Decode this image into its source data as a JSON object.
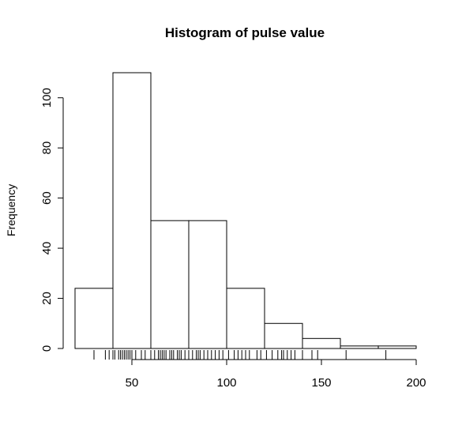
{
  "chart_data": {
    "type": "bar",
    "title": "Histogram of pulse value",
    "xlabel": "",
    "ylabel": "Frequency",
    "bin_edges": [
      20,
      40,
      60,
      80,
      100,
      120,
      140,
      160,
      180,
      200
    ],
    "values": [
      24,
      110,
      51,
      51,
      24,
      10,
      4,
      1,
      1
    ],
    "xlim": [
      20,
      200
    ],
    "ylim": [
      0,
      110
    ],
    "x_ticks": [
      50,
      100,
      150,
      200
    ],
    "y_ticks": [
      0,
      20,
      40,
      60,
      80,
      100
    ],
    "grid": false,
    "rug": [
      30,
      36,
      38,
      40,
      41,
      43,
      44,
      45,
      46,
      47,
      48,
      49,
      50,
      52,
      55,
      57,
      60,
      62,
      64,
      65,
      66,
      67,
      68,
      70,
      71,
      72,
      74,
      75,
      76,
      78,
      80,
      82,
      84,
      85,
      86,
      88,
      90,
      92,
      94,
      96,
      98,
      101,
      104,
      106,
      108,
      110,
      112,
      116,
      118,
      121,
      124,
      127,
      129,
      130,
      132,
      134,
      136,
      140,
      145,
      148,
      163,
      184
    ]
  }
}
